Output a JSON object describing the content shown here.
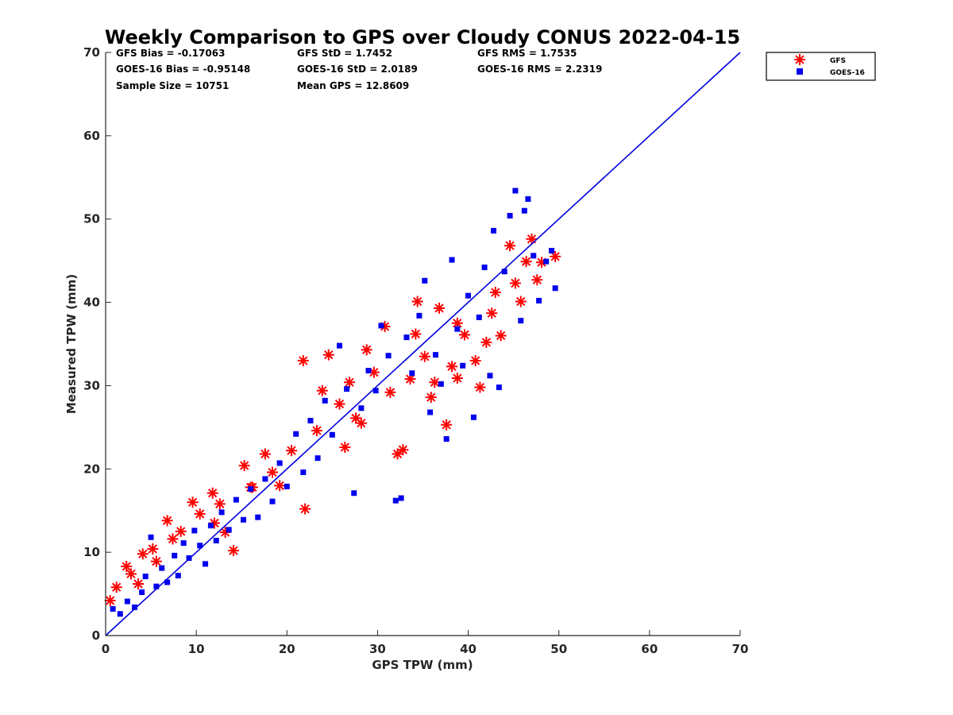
{
  "chart_data": {
    "type": "scatter",
    "title": "Weekly Comparison to GPS over Cloudy CONUS 2022-04-15",
    "xlabel": "GPS TPW (mm)",
    "ylabel": "Measured TPW (mm)",
    "xlim": [
      0,
      70
    ],
    "ylim": [
      0,
      70
    ],
    "xticks": [
      "0",
      "10",
      "20",
      "30",
      "40",
      "50",
      "60",
      "70"
    ],
    "yticks": [
      "0",
      "10",
      "20",
      "30",
      "40",
      "50",
      "60",
      "70"
    ],
    "grid": false,
    "legend_position": "outside top-right",
    "stats": [
      "GFS Bias = -0.17063",
      "GFS StD = 1.7452",
      "GFS RMS = 1.7535",
      "GOES-16 Bias = -0.95148",
      "GOES-16 StD = 2.0189",
      "GOES-16 RMS = 2.2319",
      "Sample Size = 10751",
      "Mean GPS = 12.8609"
    ],
    "reference_line": {
      "x": [
        0,
        70
      ],
      "y": [
        0,
        70
      ],
      "color": "#0000dd"
    },
    "series": [
      {
        "name": "GFS",
        "marker": "asterisk",
        "color": "#ff0000",
        "points": [
          [
            0.5,
            4.2
          ],
          [
            1.2,
            5.8
          ],
          [
            2.3,
            8.3
          ],
          [
            2.8,
            7.4
          ],
          [
            3.6,
            6.2
          ],
          [
            4.1,
            9.8
          ],
          [
            5.2,
            10.4
          ],
          [
            5.6,
            8.9
          ],
          [
            6.8,
            13.8
          ],
          [
            7.4,
            11.6
          ],
          [
            8.3,
            12.5
          ],
          [
            9.6,
            16.0
          ],
          [
            10.4,
            14.6
          ],
          [
            11.8,
            17.1
          ],
          [
            12.6,
            15.8
          ],
          [
            13.2,
            12.4
          ],
          [
            14.1,
            10.2
          ],
          [
            15.3,
            20.4
          ],
          [
            16.2,
            17.8
          ],
          [
            17.6,
            21.8
          ],
          [
            18.4,
            19.6
          ],
          [
            19.2,
            18.0
          ],
          [
            21.8,
            33.0
          ],
          [
            22.0,
            15.2
          ],
          [
            23.3,
            24.6
          ],
          [
            23.9,
            29.4
          ],
          [
            24.6,
            33.7
          ],
          [
            25.8,
            27.8
          ],
          [
            26.4,
            22.6
          ],
          [
            27.6,
            26.1
          ],
          [
            28.2,
            25.5
          ],
          [
            28.8,
            34.3
          ],
          [
            29.6,
            31.6
          ],
          [
            30.8,
            37.1
          ],
          [
            31.4,
            29.2
          ],
          [
            32.2,
            21.8
          ],
          [
            32.8,
            22.3
          ],
          [
            33.6,
            30.8
          ],
          [
            34.4,
            40.1
          ],
          [
            35.2,
            33.5
          ],
          [
            35.9,
            28.6
          ],
          [
            36.3,
            30.4
          ],
          [
            36.8,
            39.3
          ],
          [
            37.6,
            25.3
          ],
          [
            38.2,
            32.3
          ],
          [
            38.8,
            37.5
          ],
          [
            39.6,
            36.1
          ],
          [
            40.8,
            33.0
          ],
          [
            41.3,
            29.8
          ],
          [
            42.0,
            35.2
          ],
          [
            42.6,
            38.7
          ],
          [
            43.0,
            41.2
          ],
          [
            43.6,
            36.0
          ],
          [
            44.6,
            46.8
          ],
          [
            45.2,
            42.3
          ],
          [
            45.8,
            40.1
          ],
          [
            46.4,
            44.9
          ],
          [
            47.0,
            47.6
          ],
          [
            47.6,
            42.7
          ],
          [
            48.1,
            44.8
          ],
          [
            49.6,
            45.5
          ],
          [
            38.8,
            30.9
          ],
          [
            34.2,
            36.2
          ],
          [
            26.9,
            30.4
          ],
          [
            20.5,
            22.2
          ],
          [
            16.0,
            17.8
          ],
          [
            12.0,
            13.5
          ]
        ]
      },
      {
        "name": "GOES-16",
        "marker": "square",
        "color": "#0000ee",
        "points": [
          [
            0.8,
            3.2
          ],
          [
            1.6,
            2.6
          ],
          [
            2.4,
            4.1
          ],
          [
            3.2,
            3.4
          ],
          [
            4.0,
            5.2
          ],
          [
            4.4,
            7.1
          ],
          [
            5.0,
            11.8
          ],
          [
            5.6,
            5.9
          ],
          [
            6.2,
            8.1
          ],
          [
            6.8,
            6.4
          ],
          [
            7.6,
            9.6
          ],
          [
            8.0,
            7.2
          ],
          [
            8.6,
            11.1
          ],
          [
            9.2,
            9.3
          ],
          [
            9.8,
            12.6
          ],
          [
            10.4,
            10.8
          ],
          [
            11.0,
            8.6
          ],
          [
            11.6,
            13.2
          ],
          [
            12.2,
            11.4
          ],
          [
            12.8,
            14.8
          ],
          [
            13.6,
            12.7
          ],
          [
            14.4,
            16.3
          ],
          [
            15.2,
            13.9
          ],
          [
            16.0,
            17.6
          ],
          [
            16.8,
            14.2
          ],
          [
            17.6,
            18.8
          ],
          [
            18.4,
            16.1
          ],
          [
            19.2,
            20.7
          ],
          [
            20.0,
            17.9
          ],
          [
            21.0,
            24.2
          ],
          [
            21.8,
            19.6
          ],
          [
            22.6,
            25.8
          ],
          [
            23.4,
            21.3
          ],
          [
            24.2,
            28.2
          ],
          [
            25.0,
            24.1
          ],
          [
            25.8,
            34.8
          ],
          [
            26.6,
            29.6
          ],
          [
            27.4,
            17.1
          ],
          [
            28.2,
            27.3
          ],
          [
            29.0,
            31.8
          ],
          [
            29.8,
            29.4
          ],
          [
            30.4,
            37.2
          ],
          [
            31.2,
            33.6
          ],
          [
            32.0,
            16.2
          ],
          [
            32.6,
            16.5
          ],
          [
            33.2,
            35.8
          ],
          [
            33.8,
            31.5
          ],
          [
            34.6,
            38.4
          ],
          [
            35.2,
            42.6
          ],
          [
            35.8,
            26.8
          ],
          [
            36.4,
            33.7
          ],
          [
            37.0,
            30.2
          ],
          [
            37.6,
            23.6
          ],
          [
            38.2,
            45.1
          ],
          [
            38.8,
            36.8
          ],
          [
            39.4,
            32.4
          ],
          [
            40.0,
            40.8
          ],
          [
            40.6,
            26.2
          ],
          [
            41.2,
            38.2
          ],
          [
            41.8,
            44.2
          ],
          [
            42.4,
            31.2
          ],
          [
            42.8,
            48.6
          ],
          [
            43.4,
            29.8
          ],
          [
            44.0,
            43.7
          ],
          [
            44.6,
            50.4
          ],
          [
            45.2,
            53.4
          ],
          [
            45.8,
            37.8
          ],
          [
            46.2,
            51.0
          ],
          [
            46.6,
            52.4
          ],
          [
            47.2,
            45.6
          ],
          [
            47.8,
            40.2
          ],
          [
            48.6,
            44.9
          ],
          [
            49.2,
            46.2
          ],
          [
            49.6,
            41.7
          ]
        ]
      }
    ]
  }
}
